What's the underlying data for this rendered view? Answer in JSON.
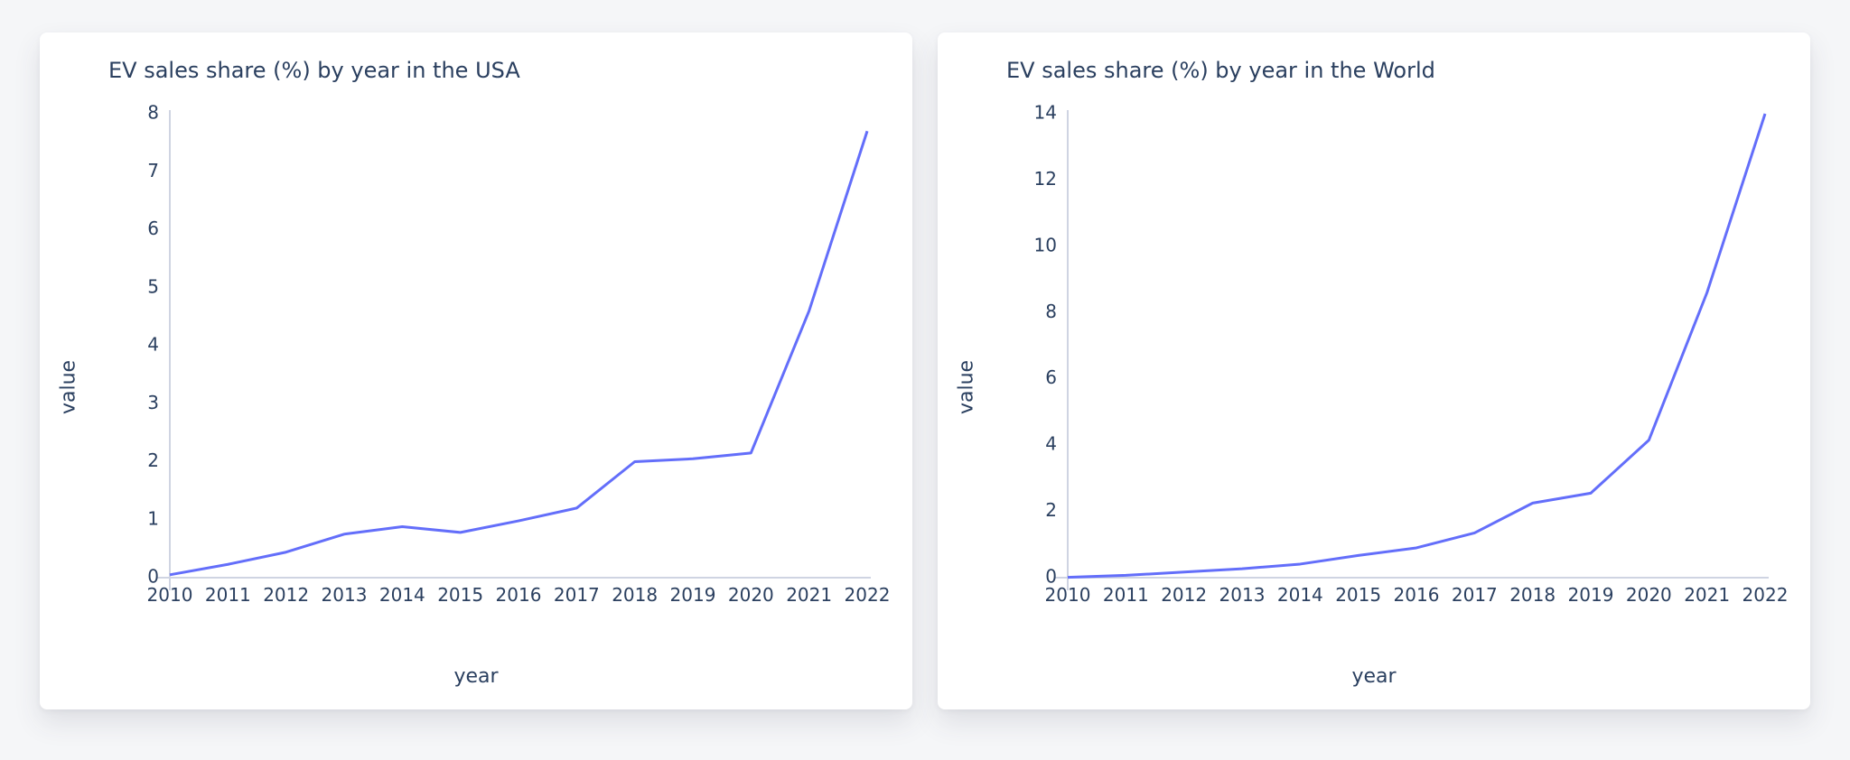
{
  "page_background": "#f5f6f8",
  "charts": [
    {
      "type": "line",
      "title": "EV sales share (%) by year in the USA",
      "xlabel": "year",
      "ylabel": "value",
      "background_color": "#ffffff",
      "title_color": "#2a3f5f",
      "title_fontsize": 24,
      "axis_label_fontsize": 22,
      "tick_fontsize": 20,
      "axis_line_color": "#cfd4e2",
      "line_color": "#636efa",
      "line_width": 3,
      "x_values": [
        2010,
        2011,
        2012,
        2013,
        2014,
        2015,
        2016,
        2017,
        2018,
        2019,
        2020,
        2021,
        2022
      ],
      "y_values": [
        0.05,
        0.23,
        0.44,
        0.75,
        0.88,
        0.78,
        0.98,
        1.2,
        2.0,
        2.05,
        2.15,
        4.6,
        7.7
      ],
      "xlim": [
        2010,
        2022
      ],
      "ylim": [
        0,
        8
      ],
      "ytick_step": 1,
      "yticks": [
        0,
        1,
        2,
        3,
        4,
        5,
        6,
        7,
        8
      ],
      "xticks": [
        2010,
        2011,
        2012,
        2013,
        2014,
        2015,
        2016,
        2017,
        2018,
        2019,
        2020,
        2021,
        2022
      ],
      "grid": false
    },
    {
      "type": "line",
      "title": "EV sales share (%) by year in the World",
      "xlabel": "year",
      "ylabel": "value",
      "background_color": "#ffffff",
      "title_color": "#2a3f5f",
      "title_fontsize": 24,
      "axis_label_fontsize": 22,
      "tick_fontsize": 20,
      "axis_line_color": "#cfd4e2",
      "line_color": "#636efa",
      "line_width": 3,
      "x_values": [
        2010,
        2011,
        2012,
        2013,
        2014,
        2015,
        2016,
        2017,
        2018,
        2019,
        2020,
        2021,
        2022
      ],
      "y_values": [
        0.01,
        0.07,
        0.17,
        0.27,
        0.41,
        0.67,
        0.9,
        1.35,
        2.25,
        2.55,
        4.15,
        8.6,
        14.0
      ],
      "xlim": [
        2010,
        2022
      ],
      "ylim": [
        0,
        14
      ],
      "ytick_step": 2,
      "yticks": [
        0,
        2,
        4,
        6,
        8,
        10,
        12,
        14
      ],
      "xticks": [
        2010,
        2011,
        2012,
        2013,
        2014,
        2015,
        2016,
        2017,
        2018,
        2019,
        2020,
        2021,
        2022
      ],
      "grid": false
    }
  ]
}
